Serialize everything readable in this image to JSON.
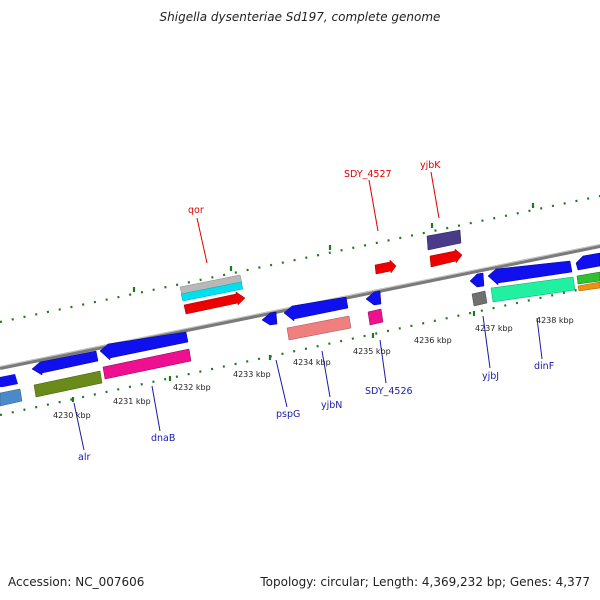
{
  "title": "Shigella dysenteriae Sd197, complete genome",
  "footer": {
    "accession": "Accession: NC_007606",
    "summary": "Topology: circular; Length: 4,369,232 bp; Genes: 4,377"
  },
  "colors": {
    "backbone": "#7a7a7a",
    "tick": "#1c7a1c",
    "top_label": "#dd0000",
    "bottom_label": "#1a1aaa"
  },
  "kbp_labels": [
    "4230 kbp",
    "4231 kbp",
    "4232 kbp",
    "4233 kbp",
    "4234 kbp",
    "4235 kbp",
    "4236 kbp",
    "4237 kbp",
    "4238 kbp"
  ],
  "top_gene_labels": [
    "qor",
    "SDY_4527",
    "yjbK"
  ],
  "bottom_gene_labels": [
    "alr",
    "dnaB",
    "pspG",
    "yjbN",
    "SDY_4526",
    "yjbJ",
    "dinF"
  ]
}
